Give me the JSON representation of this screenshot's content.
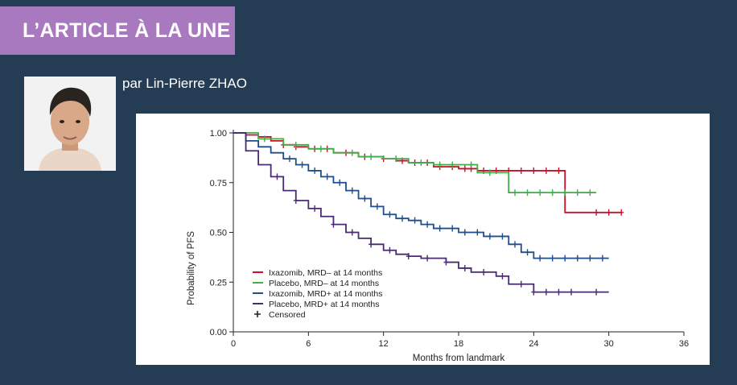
{
  "banner": {
    "title": "L’ARTICLE À LA UNE"
  },
  "author": {
    "byline": "par Lin-Pierre ZHAO"
  },
  "chart_data": {
    "type": "line",
    "title": "",
    "xlabel": "Months from landmark",
    "ylabel": "Probability of PFS",
    "xlim": [
      0,
      36
    ],
    "ylim": [
      0,
      1
    ],
    "xticks": [
      0,
      6,
      12,
      18,
      24,
      30,
      36
    ],
    "yticks": [
      "0.00",
      "0.25",
      "0.50",
      "0.75",
      "1.00"
    ],
    "legend_position": "bottom-left",
    "censored_label": "Censored",
    "series": [
      {
        "name": "Ixazomib, MRD– at 14 months",
        "color": "#c8102e",
        "points": [
          [
            0,
            1.0
          ],
          [
            1,
            0.99
          ],
          [
            2,
            0.98
          ],
          [
            3,
            0.96
          ],
          [
            4,
            0.94
          ],
          [
            5,
            0.93
          ],
          [
            6,
            0.92
          ],
          [
            8,
            0.9
          ],
          [
            10,
            0.88
          ],
          [
            12,
            0.87
          ],
          [
            13,
            0.86
          ],
          [
            14,
            0.85
          ],
          [
            16,
            0.83
          ],
          [
            18,
            0.82
          ],
          [
            19.5,
            0.81
          ],
          [
            26.5,
            0.81
          ],
          [
            26.5,
            0.6
          ],
          [
            31,
            0.6
          ]
        ],
        "censored": [
          4,
          5,
          6.5,
          7.5,
          9,
          10.5,
          12,
          13.5,
          14.5,
          15.5,
          16.5,
          17.5,
          18.5,
          19,
          20,
          21,
          22,
          23,
          24,
          25,
          26,
          29,
          30,
          31
        ]
      },
      {
        "name": "Placebo, MRD– at 14 months",
        "color": "#3fae49",
        "points": [
          [
            0,
            1.0
          ],
          [
            2,
            0.97
          ],
          [
            4,
            0.94
          ],
          [
            6,
            0.92
          ],
          [
            8,
            0.9
          ],
          [
            10,
            0.88
          ],
          [
            12,
            0.87
          ],
          [
            14,
            0.85
          ],
          [
            16,
            0.84
          ],
          [
            19.5,
            0.84
          ],
          [
            19.5,
            0.8
          ],
          [
            22,
            0.8
          ],
          [
            22,
            0.7
          ],
          [
            29,
            0.7
          ]
        ],
        "censored": [
          2.5,
          5,
          7,
          9.5,
          11,
          13,
          15,
          16.5,
          17.5,
          19,
          20.5,
          22.5,
          23.5,
          24.5,
          25.5,
          26.5,
          27.5,
          28.5
        ]
      },
      {
        "name": "Ixazomib, MRD+ at 14 months",
        "color": "#1f4e8c",
        "points": [
          [
            0,
            1.0
          ],
          [
            1,
            0.96
          ],
          [
            2,
            0.93
          ],
          [
            3,
            0.9
          ],
          [
            4,
            0.87
          ],
          [
            5,
            0.84
          ],
          [
            6,
            0.81
          ],
          [
            7,
            0.78
          ],
          [
            8,
            0.75
          ],
          [
            9,
            0.71
          ],
          [
            10,
            0.67
          ],
          [
            11,
            0.63
          ],
          [
            12,
            0.59
          ],
          [
            13,
            0.57
          ],
          [
            14,
            0.56
          ],
          [
            15,
            0.54
          ],
          [
            16,
            0.52
          ],
          [
            18,
            0.5
          ],
          [
            20,
            0.48
          ],
          [
            22,
            0.44
          ],
          [
            23,
            0.4
          ],
          [
            24,
            0.37
          ],
          [
            30,
            0.37
          ]
        ],
        "censored": [
          4.5,
          5.5,
          6.5,
          7.5,
          8.5,
          9.5,
          10.5,
          11.5,
          12.5,
          13.5,
          14.5,
          15.5,
          16.5,
          17.5,
          18.5,
          19.5,
          20.5,
          21.5,
          22.5,
          23.5,
          24.5,
          25.5,
          26.5,
          27.5,
          28.5,
          29.5
        ]
      },
      {
        "name": "Placebo, MRD+ at 14 months",
        "color": "#4b2a74",
        "points": [
          [
            0,
            1.0
          ],
          [
            1,
            0.91
          ],
          [
            2,
            0.84
          ],
          [
            3,
            0.78
          ],
          [
            4,
            0.71
          ],
          [
            5,
            0.66
          ],
          [
            6,
            0.62
          ],
          [
            7,
            0.58
          ],
          [
            8,
            0.54
          ],
          [
            9,
            0.5
          ],
          [
            10,
            0.47
          ],
          [
            11,
            0.44
          ],
          [
            12,
            0.41
          ],
          [
            13,
            0.39
          ],
          [
            14,
            0.38
          ],
          [
            15,
            0.37
          ],
          [
            17,
            0.35
          ],
          [
            18,
            0.32
          ],
          [
            19,
            0.3
          ],
          [
            21,
            0.28
          ],
          [
            22,
            0.24
          ],
          [
            24,
            0.2
          ],
          [
            30,
            0.2
          ]
        ],
        "censored": [
          3.5,
          5,
          6.5,
          8,
          9.5,
          11,
          12.5,
          14,
          15.5,
          17,
          18.5,
          20,
          21.5,
          23,
          24,
          25,
          26,
          27,
          29
        ]
      }
    ]
  }
}
